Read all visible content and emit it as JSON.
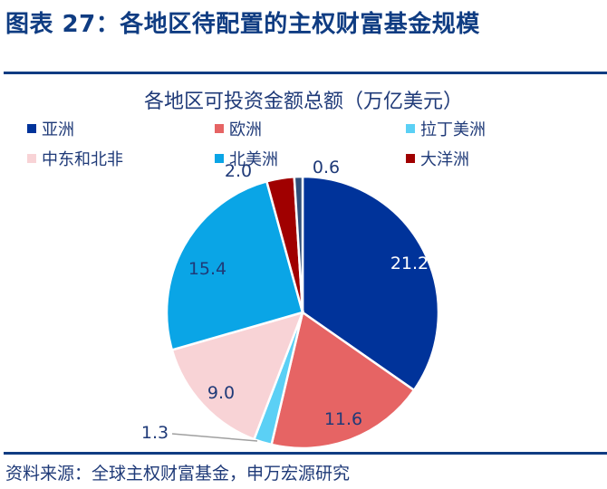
{
  "figure": {
    "title": "图表 27：各地区待配置的主权财富基金规模",
    "source": "资料来源：全球主权财富基金，申万宏源研究"
  },
  "colors": {
    "accent": "#0f3c82",
    "text": "#1f3a78"
  },
  "chart_data": {
    "type": "pie",
    "title": "各地区可投资金额总额（万亿美元）",
    "unit": "万亿美元",
    "start_angle": "12 o'clock, clockwise",
    "legend_position": "top",
    "categories": [
      "亚洲",
      "欧洲",
      "拉丁美洲",
      "中东和北非",
      "北美洲",
      "大洋洲",
      ""
    ],
    "values": [
      21.2,
      11.6,
      1.3,
      9.0,
      15.4,
      2.0,
      0.6
    ],
    "colors": [
      "#00339a",
      "#e66464",
      "#5bd0f5",
      "#f8d3d6",
      "#0aa5e6",
      "#a00000",
      "#2f4f7a"
    ],
    "labels": [
      "21.2",
      "11.6",
      "1.3",
      "9.0",
      "15.4",
      "2.0",
      "0.6"
    ]
  },
  "legend": {
    "items": [
      {
        "label": "亚洲",
        "color": "#00339a"
      },
      {
        "label": "欧洲",
        "color": "#e66464"
      },
      {
        "label": "拉丁美洲",
        "color": "#5bd0f5"
      },
      {
        "label": "中东和北非",
        "color": "#f8d3d6"
      },
      {
        "label": "北美洲",
        "color": "#0aa5e6"
      },
      {
        "label": "大洋洲",
        "color": "#a00000"
      }
    ]
  }
}
